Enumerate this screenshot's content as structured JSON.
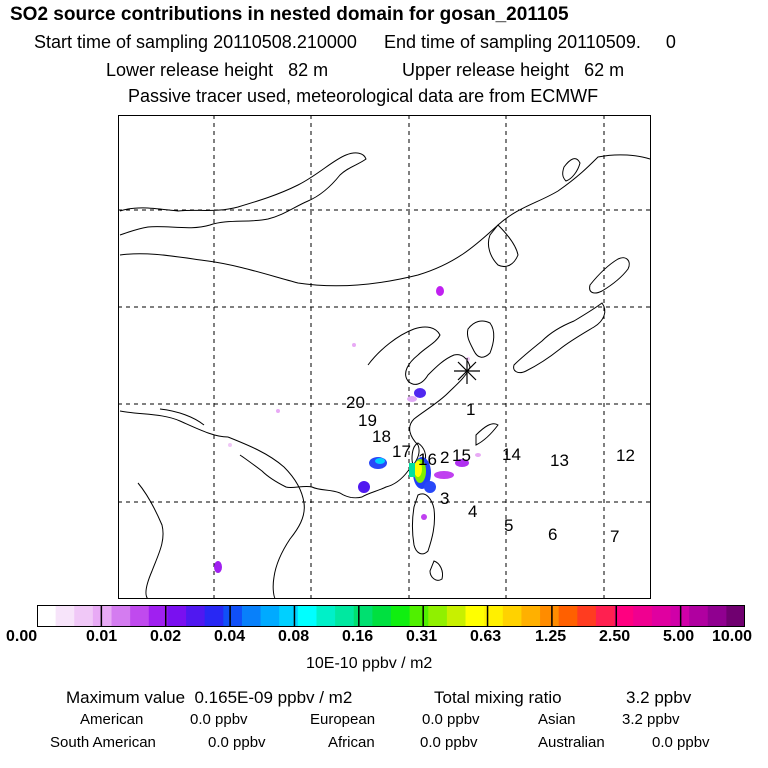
{
  "header": {
    "title": "SO2 source contributions in nested domain for gosan_201105",
    "start_time": "Start time of sampling 20110508.210000",
    "end_time": "End time of sampling 20110509.     0",
    "lower_height": "Lower release height   82 m",
    "upper_height": "Upper release height   62 m",
    "note": "Passive tracer used, meteorological data are from ECMWF"
  },
  "map": {
    "source_marker": "receptor-star",
    "region_labels": [
      "1",
      "2",
      "3",
      "4",
      "5",
      "6",
      "7",
      "12",
      "13",
      "14",
      "15",
      "16",
      "17",
      "18",
      "19",
      "20"
    ]
  },
  "colorbar": {
    "colors": [
      "#ffffff",
      "#f7e4fa",
      "#f0c8f7",
      "#e8aaf5",
      "#d47cf0",
      "#c04aee",
      "#a020f0",
      "#7a10f0",
      "#5018f0",
      "#2828f4",
      "#1050f8",
      "#0880fa",
      "#00aaff",
      "#00d0ff",
      "#00ffff",
      "#00f0c8",
      "#00e8a0",
      "#00e070",
      "#00e040",
      "#10ef10",
      "#50f000",
      "#90f000",
      "#c8f000",
      "#ffff00",
      "#fff000",
      "#ffd200",
      "#ffb000",
      "#ff8c00",
      "#ff6000",
      "#ff3c20",
      "#ff2050",
      "#ff0080",
      "#f00090",
      "#e000a0",
      "#d000a8",
      "#b000a0",
      "#900090",
      "#700070"
    ],
    "tick_labels": [
      "0.00",
      "0.01",
      "0.02",
      "0.04",
      "0.08",
      "0.16",
      "0.31",
      "0.63",
      "1.25",
      "2.50",
      "5.00",
      "10.00"
    ],
    "units": "10E-10 ppbv / m2"
  },
  "summary": {
    "max_value": "Maximum value  0.165E-09 ppbv / m2",
    "total_mixing": "Total mixing ratio",
    "total_value": "3.2 ppbv",
    "regions": [
      {
        "name": "American",
        "value": "0.0 ppbv"
      },
      {
        "name": "European",
        "value": "0.0 ppbv"
      },
      {
        "name": "Asian",
        "value": "3.2 ppbv"
      },
      {
        "name": "South American",
        "value": "0.0 ppbv"
      },
      {
        "name": "African",
        "value": "0.0 ppbv"
      },
      {
        "name": "Australian",
        "value": "0.0 ppbv"
      }
    ]
  }
}
